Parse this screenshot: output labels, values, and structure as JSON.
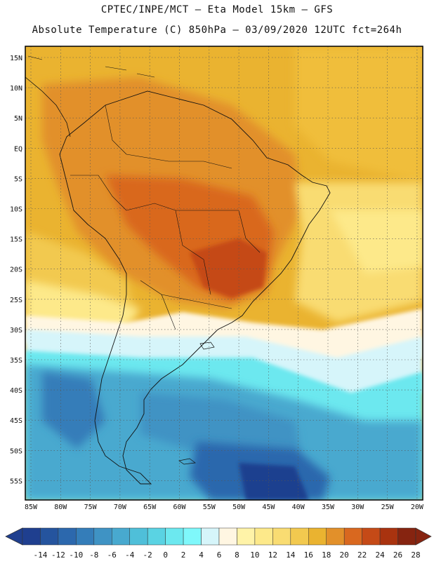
{
  "header": {
    "line1": "CPTEC/INPE/MCT –  Eta Model 15km – GFS",
    "line2": "Absolute Temperature (C) 850hPa – 03/09/2020 12UTC fct=264h"
  },
  "map": {
    "lat_labels": [
      "15N",
      "10N",
      "5N",
      "EQ",
      "5S",
      "10S",
      "15S",
      "20S",
      "25S",
      "30S",
      "35S",
      "40S",
      "45S",
      "50S",
      "55S"
    ],
    "lon_labels": [
      "85W",
      "80W",
      "75W",
      "70W",
      "65W",
      "60W",
      "55W",
      "50W",
      "45W",
      "40W",
      "35W",
      "30W",
      "25W",
      "20W"
    ]
  },
  "colorbar": {
    "labels": [
      "-14",
      "-12",
      "-10",
      "-8",
      "-6",
      "-4",
      "-2",
      "0",
      "2",
      "4",
      "6",
      "8",
      "10",
      "12",
      "14",
      "16",
      "18",
      "20",
      "22",
      "24",
      "26",
      "28"
    ],
    "colors": [
      "#1f3f8f",
      "#25549e",
      "#2c68ad",
      "#347db9",
      "#3f93c4",
      "#48a9cf",
      "#4fbfd9",
      "#5ad3e3",
      "#6ce8ef",
      "#7ff8fb",
      "#d6f5fa",
      "#fff6e2",
      "#fff3a8",
      "#fde98a",
      "#f9dc72",
      "#f2c94f",
      "#eab330",
      "#e2902a",
      "#d9681f",
      "#c54a17",
      "#a9330f",
      "#862410"
    ]
  }
}
